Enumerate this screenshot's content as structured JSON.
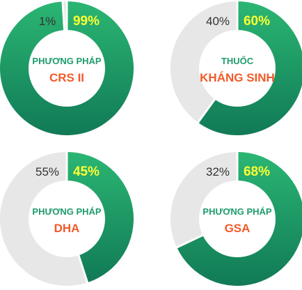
{
  "colors": {
    "green_light": "#2bb673",
    "green_dark": "#117a56",
    "grey": "#e7e7e7",
    "white": "#ffffff",
    "orange": "#f15a29",
    "green_text": "#1f9c6b",
    "yellow": "#ffff33",
    "dark_text": "#333333"
  },
  "chart_data": [
    {
      "type": "pie",
      "subtitle": "PHƯƠNG PHÁP",
      "title": "CRS II",
      "slices": [
        {
          "label": "99%",
          "value": 99
        },
        {
          "label": "1%",
          "value": 1
        }
      ]
    },
    {
      "type": "pie",
      "subtitle": "THUỐC",
      "title": "KHÁNG SINH",
      "slices": [
        {
          "label": "60%",
          "value": 60
        },
        {
          "label": "40%",
          "value": 40
        }
      ]
    },
    {
      "type": "pie",
      "subtitle": "PHƯƠNG PHÁP",
      "title": "DHA",
      "slices": [
        {
          "label": "45%",
          "value": 45
        },
        {
          "label": "55%",
          "value": 55
        }
      ]
    },
    {
      "type": "pie",
      "subtitle": "PHƯƠNG PHÁP",
      "title": "GSA",
      "slices": [
        {
          "label": "68%",
          "value": 68
        },
        {
          "label": "32%",
          "value": 32
        }
      ]
    }
  ]
}
